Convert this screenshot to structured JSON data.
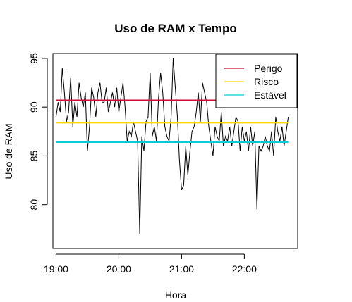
{
  "chart_data": {
    "type": "line",
    "title": "Uso de RAM x Tempo",
    "xlabel": "Hora",
    "ylabel": "Uso de RAM",
    "x_range": [
      "18:57",
      "22:51"
    ],
    "ylim": [
      75.5,
      95.5
    ],
    "x_ticks": [
      {
        "time": "19:00",
        "label": "19:00"
      },
      {
        "time": "20:00",
        "label": "20:00"
      },
      {
        "time": "21:00",
        "label": "21:00"
      },
      {
        "time": "22:00",
        "label": "22:00"
      }
    ],
    "y_ticks": [
      {
        "value": 80,
        "label": "80"
      },
      {
        "value": 85,
        "label": "85"
      },
      {
        "value": 90,
        "label": "90"
      },
      {
        "value": 95,
        "label": "95"
      }
    ],
    "grid": false,
    "legend_position": "top-right",
    "series": [
      {
        "name": "",
        "color": "#000000",
        "x": [
          "19:00",
          "19:02",
          "19:04",
          "19:06",
          "19:08",
          "19:10",
          "19:12",
          "19:14",
          "19:16",
          "19:18",
          "19:20",
          "19:22",
          "19:24",
          "19:26",
          "19:28",
          "19:30",
          "19:32",
          "19:34",
          "19:36",
          "19:38",
          "19:40",
          "19:42",
          "19:44",
          "19:46",
          "19:48",
          "19:50",
          "19:52",
          "19:54",
          "19:56",
          "19:58",
          "20:00",
          "20:02",
          "20:04",
          "20:06",
          "20:08",
          "20:10",
          "20:12",
          "20:14",
          "20:16",
          "20:18",
          "20:20",
          "20:22",
          "20:24",
          "20:26",
          "20:28",
          "20:30",
          "20:32",
          "20:34",
          "20:36",
          "20:38",
          "20:40",
          "20:42",
          "20:44",
          "20:46",
          "20:48",
          "20:50",
          "20:52",
          "20:54",
          "20:56",
          "20:58",
          "21:00",
          "21:02",
          "21:04",
          "21:06",
          "21:08",
          "21:10",
          "21:12",
          "21:14",
          "21:16",
          "21:18",
          "21:20",
          "21:22",
          "21:24",
          "21:26",
          "21:28",
          "21:30",
          "21:32",
          "21:34",
          "21:36",
          "21:38",
          "21:40",
          "21:42",
          "21:44",
          "21:46",
          "21:48",
          "21:50",
          "21:52",
          "21:54",
          "21:56",
          "21:58",
          "22:00",
          "22:02",
          "22:04",
          "22:06",
          "22:08",
          "22:10",
          "22:12",
          "22:14",
          "22:16",
          "22:18",
          "22:20",
          "22:22",
          "22:24",
          "22:26",
          "22:28",
          "22:30",
          "22:32",
          "22:34",
          "22:36",
          "22:38",
          "22:40",
          "22:42"
        ],
        "y": [
          89.0,
          90.5,
          89.5,
          94.0,
          91.5,
          88.5,
          89.5,
          93.0,
          88.0,
          90.5,
          89.0,
          92.5,
          91.0,
          90.0,
          91.5,
          85.5,
          88.0,
          92.0,
          91.0,
          89.0,
          91.5,
          92.5,
          90.5,
          90.5,
          92.0,
          89.5,
          90.5,
          91.5,
          90.0,
          92.0,
          89.5,
          91.0,
          92.5,
          90.0,
          86.5,
          87.5,
          87.0,
          88.5,
          87.5,
          86.5,
          77.0,
          87.0,
          85.5,
          88.5,
          89.0,
          93.5,
          87.0,
          88.0,
          86.5,
          91.0,
          93.5,
          91.5,
          88.0,
          87.0,
          86.5,
          89.0,
          95.0,
          92.0,
          89.0,
          84.5,
          81.5,
          82.0,
          86.0,
          83.0,
          85.5,
          87.5,
          88.0,
          89.5,
          91.5,
          88.5,
          92.5,
          91.5,
          90.5,
          88.0,
          86.5,
          85.0,
          88.0,
          87.0,
          86.5,
          89.5,
          86.0,
          87.0,
          86.5,
          88.0,
          86.0,
          87.5,
          89.0,
          88.5,
          85.5,
          88.0,
          86.5,
          87.5,
          85.5,
          88.0,
          86.0,
          87.5,
          79.5,
          86.0,
          85.5,
          86.0,
          87.0,
          86.0,
          85.5,
          87.5,
          85.0,
          89.0,
          87.5,
          86.5,
          88.0,
          86.0,
          87.5,
          89.0
        ]
      }
    ],
    "reference_lines": [
      {
        "name": "Perigo",
        "value": 90.7,
        "color": "#C8102E",
        "x_range": [
          "19:00",
          "21:35"
        ]
      },
      {
        "name": "Risco",
        "value": 88.4,
        "color": "#FFD700",
        "x_range": [
          "19:00",
          "22:42"
        ]
      },
      {
        "name": "Estável",
        "value": 86.4,
        "color": "#00CED1",
        "x_range": [
          "19:00",
          "22:42"
        ]
      }
    ],
    "legend": [
      {
        "label": "Perigo",
        "color": "#C8102E"
      },
      {
        "label": "Risco",
        "color": "#FFD700"
      },
      {
        "label": "Estável",
        "color": "#00CED1"
      }
    ]
  }
}
